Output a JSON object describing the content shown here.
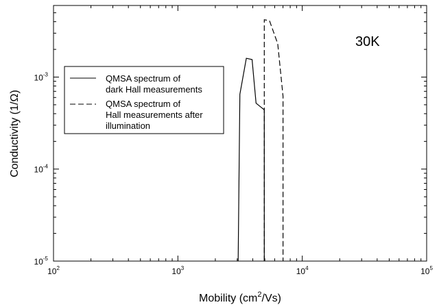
{
  "chart_data": {
    "type": "line",
    "xlabel": "Mobility (cm",
    "xlabel_sup": "2",
    "xlabel_tail": "/Vs)",
    "ylabel": "Conductivity (1/Ω)",
    "x_scale": "log",
    "y_scale": "log",
    "xlim": [
      100,
      100000
    ],
    "ylim": [
      1e-05,
      0.006
    ],
    "x_ticks": [
      {
        "base": "10",
        "exp": "2",
        "value": 100
      },
      {
        "base": "10",
        "exp": "3",
        "value": 1000
      },
      {
        "base": "10",
        "exp": "4",
        "value": 10000
      },
      {
        "base": "10",
        "exp": "5",
        "value": 100000
      }
    ],
    "y_ticks": [
      {
        "base": "10",
        "exp": "-5",
        "value": 1e-05
      },
      {
        "base": "10",
        "exp": "-4",
        "value": 0.0001
      },
      {
        "base": "10",
        "exp": "-3",
        "value": 0.001
      }
    ],
    "grid": false,
    "annotation": "30K",
    "legend": {
      "placement": "upper-left",
      "entries": [
        {
          "lines": [
            "QMSA spectrum of",
            "dark Hall measurements"
          ],
          "style": "solid"
        },
        {
          "lines": [
            "QMSA spectrum of",
            "Hall measurements after",
            "illumination"
          ],
          "style": "dashed"
        }
      ]
    },
    "series": [
      {
        "style": "solid",
        "color": "#000000",
        "x": [
          3050,
          3150,
          3550,
          3950,
          4250,
          4950,
          4950
        ],
        "y": [
          1e-05,
          0.00065,
          0.0016,
          0.00155,
          0.00052,
          0.00044,
          1e-05
        ]
      },
      {
        "style": "dashed",
        "color": "#000000",
        "x": [
          4950,
          4950,
          5450,
          6350,
          7000,
          7000
        ],
        "y": [
          1e-05,
          0.0042,
          0.0041,
          0.0023,
          0.00062,
          1e-05
        ]
      }
    ]
  }
}
